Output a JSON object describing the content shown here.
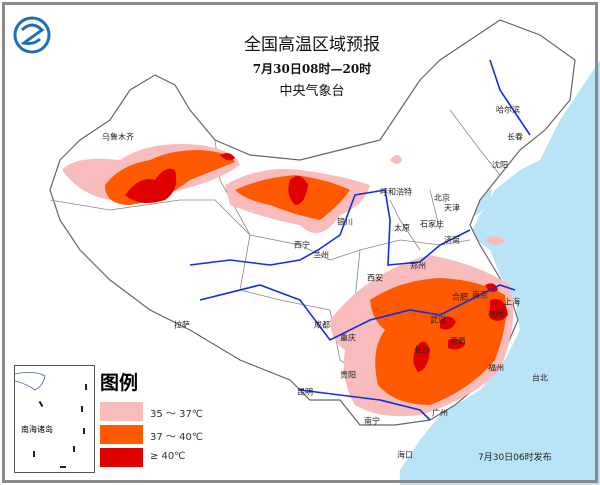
{
  "header": {
    "title": "全国高温区域预报",
    "subtitle": "7月30日08时—20时",
    "organization": "中央气象台"
  },
  "logo": {
    "icon": "cma-logo"
  },
  "legend": {
    "title": "图例",
    "items": [
      {
        "label": "35 ～ 37℃",
        "color": "#f9bcbc"
      },
      {
        "label": "37 ～ 40℃",
        "color": "#ff5a00"
      },
      {
        "label": "≥ 40℃",
        "color": "#e00000"
      }
    ]
  },
  "inset": {
    "label": "南海诸岛"
  },
  "issued": "7月30日06时发布",
  "colors": {
    "sea": "#b9e3f7",
    "rivers": "#1030e0",
    "borders": "#888888"
  },
  "cities": [
    "乌鲁木齐",
    "哈尔滨",
    "长春",
    "沈阳",
    "呼和浩特",
    "北京",
    "天津",
    "银川",
    "太原",
    "石家庄",
    "济南",
    "西宁",
    "兰州",
    "西安",
    "郑州",
    "合肥",
    "南京",
    "上海",
    "杭州",
    "武汉",
    "长沙",
    "南昌",
    "成都",
    "重庆",
    "贵阳",
    "昆明",
    "拉萨",
    "南宁",
    "广州",
    "福州",
    "台北",
    "海口"
  ]
}
